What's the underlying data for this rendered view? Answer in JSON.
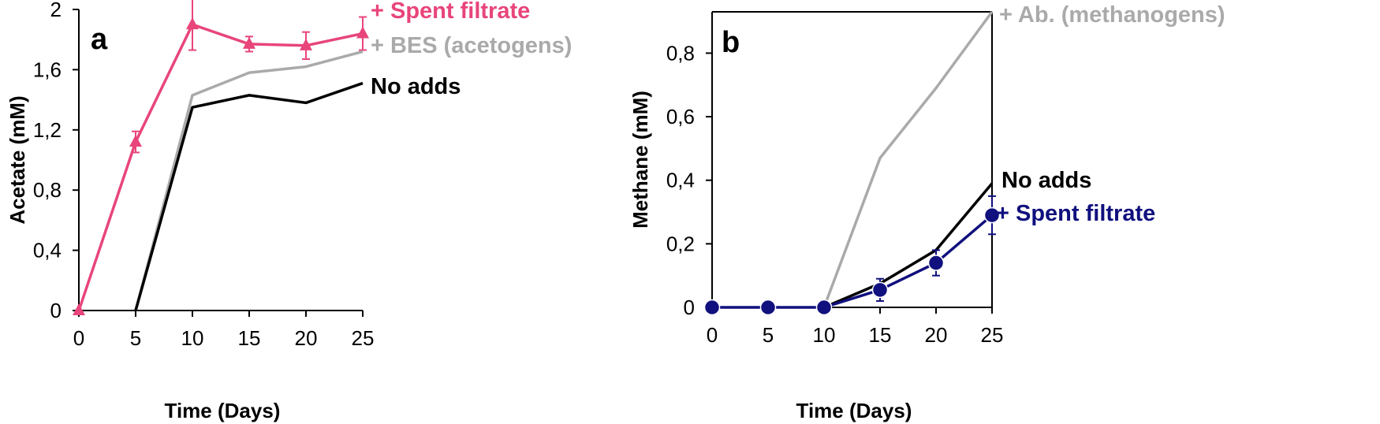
{
  "chart_data": [
    {
      "type": "line",
      "panel_label": "a",
      "xlabel": "Time (Days)",
      "ylabel": "Acetate (mM)",
      "xlim": [
        0,
        25
      ],
      "ylim": [
        0,
        2
      ],
      "x_ticks": [
        0,
        5,
        10,
        15,
        20,
        25
      ],
      "y_ticks": [
        0,
        0.4,
        0.8,
        1.2,
        1.6,
        2
      ],
      "y_tick_labels": [
        "0",
        "0,4",
        "0,8",
        "1,2",
        "1,6",
        "2"
      ],
      "grid": false,
      "series": [
        {
          "name": "+ Spent filtrate",
          "color": "#e8457a",
          "marker": "triangle",
          "x": [
            0,
            5,
            10,
            15,
            20,
            25
          ],
          "y": [
            0,
            1.12,
            1.9,
            1.77,
            1.76,
            1.84
          ],
          "error": [
            0,
            0.07,
            0.17,
            0.05,
            0.09,
            0.11
          ]
        },
        {
          "name": "+ BES (acetogens)",
          "color": "#aaaaaa",
          "marker": "none",
          "x": [
            5,
            10,
            15,
            20,
            25
          ],
          "y": [
            0,
            1.43,
            1.58,
            1.62,
            1.72
          ]
        },
        {
          "name": "No adds",
          "color": "#000000",
          "marker": "none",
          "x": [
            5,
            10,
            15,
            20,
            25
          ],
          "y": [
            0,
            1.35,
            1.43,
            1.38,
            1.51
          ]
        }
      ]
    },
    {
      "type": "line",
      "panel_label": "b",
      "xlabel": "Time (Days)",
      "ylabel": "Methane (mM)",
      "xlim": [
        0,
        25
      ],
      "ylim": [
        0,
        0.93
      ],
      "x_ticks": [
        0,
        5,
        10,
        15,
        20,
        25
      ],
      "y_ticks": [
        0,
        0.2,
        0.4,
        0.6,
        0.8
      ],
      "y_tick_labels": [
        "0",
        "0,2",
        "0,4",
        "0,6",
        "0,8"
      ],
      "grid": false,
      "series": [
        {
          "name": "+ Ab. (methanogens)",
          "color": "#aaaaaa",
          "marker": "none",
          "x": [
            10,
            15,
            20,
            25
          ],
          "y": [
            0,
            0.47,
            0.69,
            0.93
          ]
        },
        {
          "name": "No adds",
          "color": "#000000",
          "marker": "none",
          "x": [
            10,
            15,
            20,
            25
          ],
          "y": [
            0,
            0.075,
            0.18,
            0.39
          ]
        },
        {
          "name": "+ Spent filtrate",
          "color": "#10107e",
          "marker": "circle",
          "x": [
            0,
            5,
            10,
            15,
            20,
            25
          ],
          "y": [
            0,
            0,
            0,
            0.055,
            0.14,
            0.29
          ],
          "error": [
            0,
            0,
            0,
            0.035,
            0.04,
            0.06
          ]
        }
      ]
    }
  ]
}
